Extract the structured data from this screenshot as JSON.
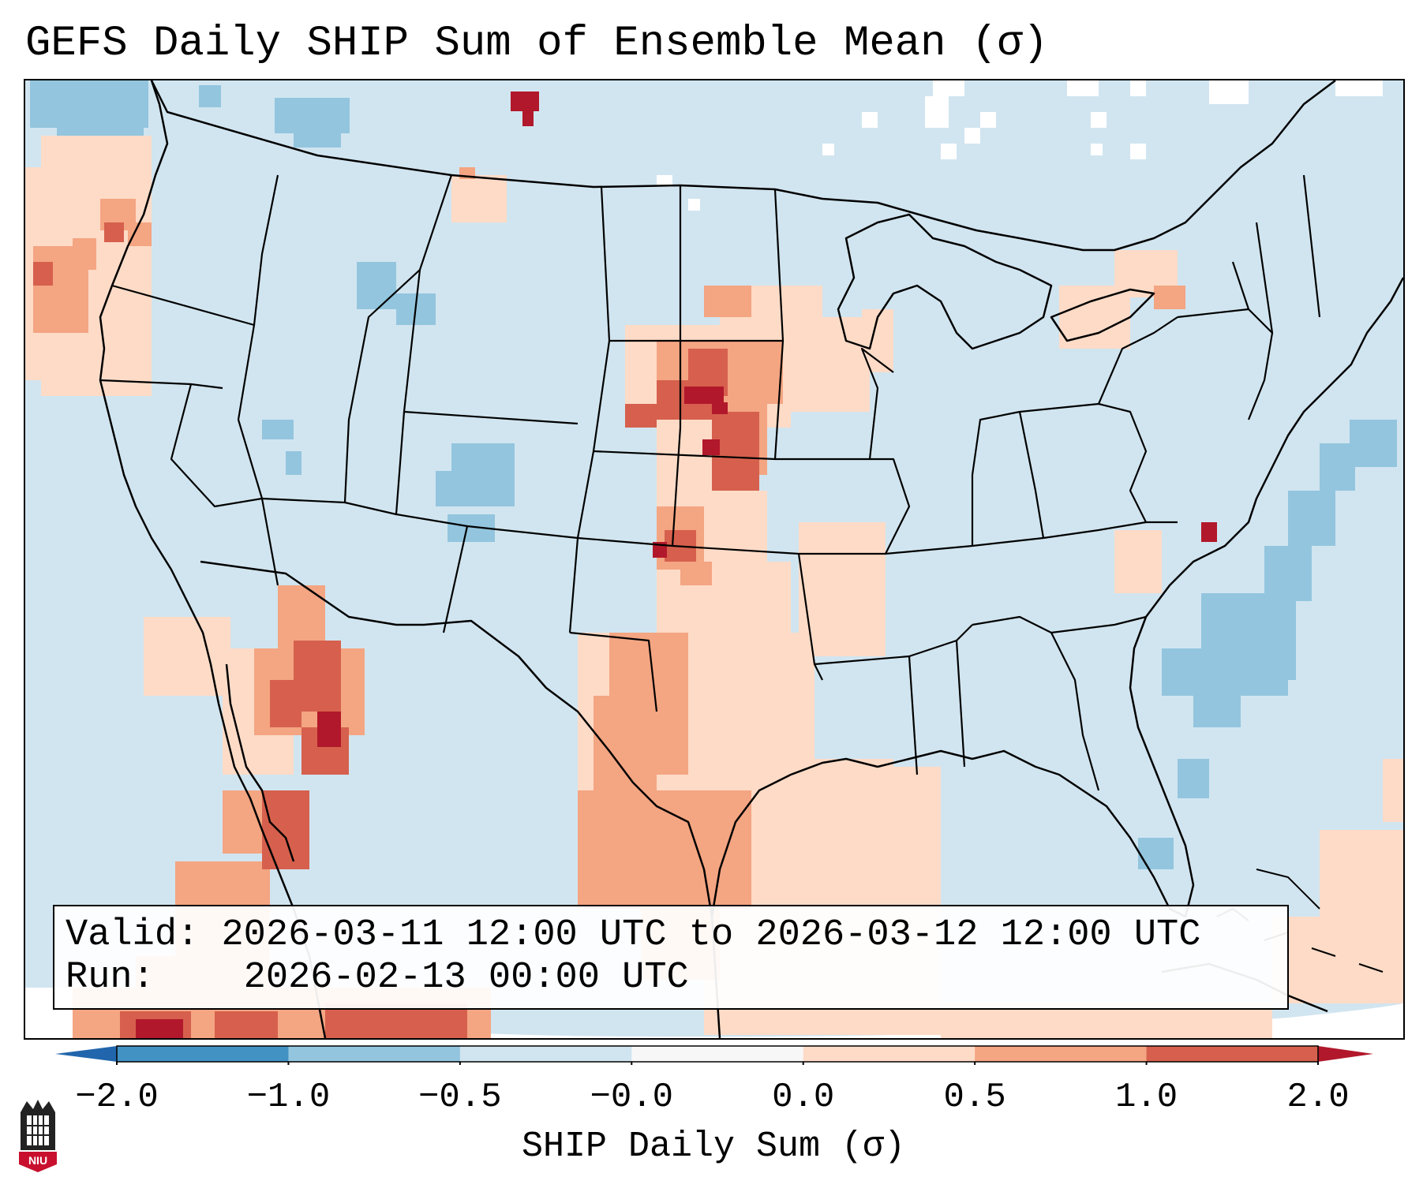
{
  "title": "GEFS Daily SHIP Sum of Ensemble Mean (σ)",
  "info": {
    "valid_label": "Valid:",
    "valid_value": "2026-03-11 12:00 UTC to 2026-03-12 12:00 UTC",
    "run_label": "Run:",
    "run_value": "2026-02-13 00:00 UTC"
  },
  "colorbar": {
    "label": "SHIP Daily Sum (σ)",
    "ticks": [
      "−2.0",
      "−1.0",
      "−0.5",
      "−0.0",
      "0.0",
      "0.5",
      "1.0",
      "2.0"
    ],
    "bins": [
      {
        "from": -2.0,
        "to": -1.0,
        "color": "#4392c4"
      },
      {
        "from": -1.0,
        "to": -0.5,
        "color": "#93c5de"
      },
      {
        "from": -0.5,
        "to": -0.0,
        "color": "#d1e5f0"
      },
      {
        "from": -0.0,
        "to": 0.0,
        "color": "#f7f7f7"
      },
      {
        "from": 0.0,
        "to": 0.5,
        "color": "#fddbc7"
      },
      {
        "from": 0.5,
        "to": 1.0,
        "color": "#f4a582"
      },
      {
        "from": 1.0,
        "to": 2.0,
        "color": "#d6604d"
      }
    ],
    "under_color": "#2166ac",
    "over_color": "#b2182b"
  },
  "map": {
    "background_color": "#d1e5f0",
    "projection": "lambert-conformal-conus",
    "features": [
      "coastlines",
      "state-borders",
      "country-borders"
    ]
  },
  "logo": {
    "text": "NIU",
    "color": "#c8102e"
  }
}
